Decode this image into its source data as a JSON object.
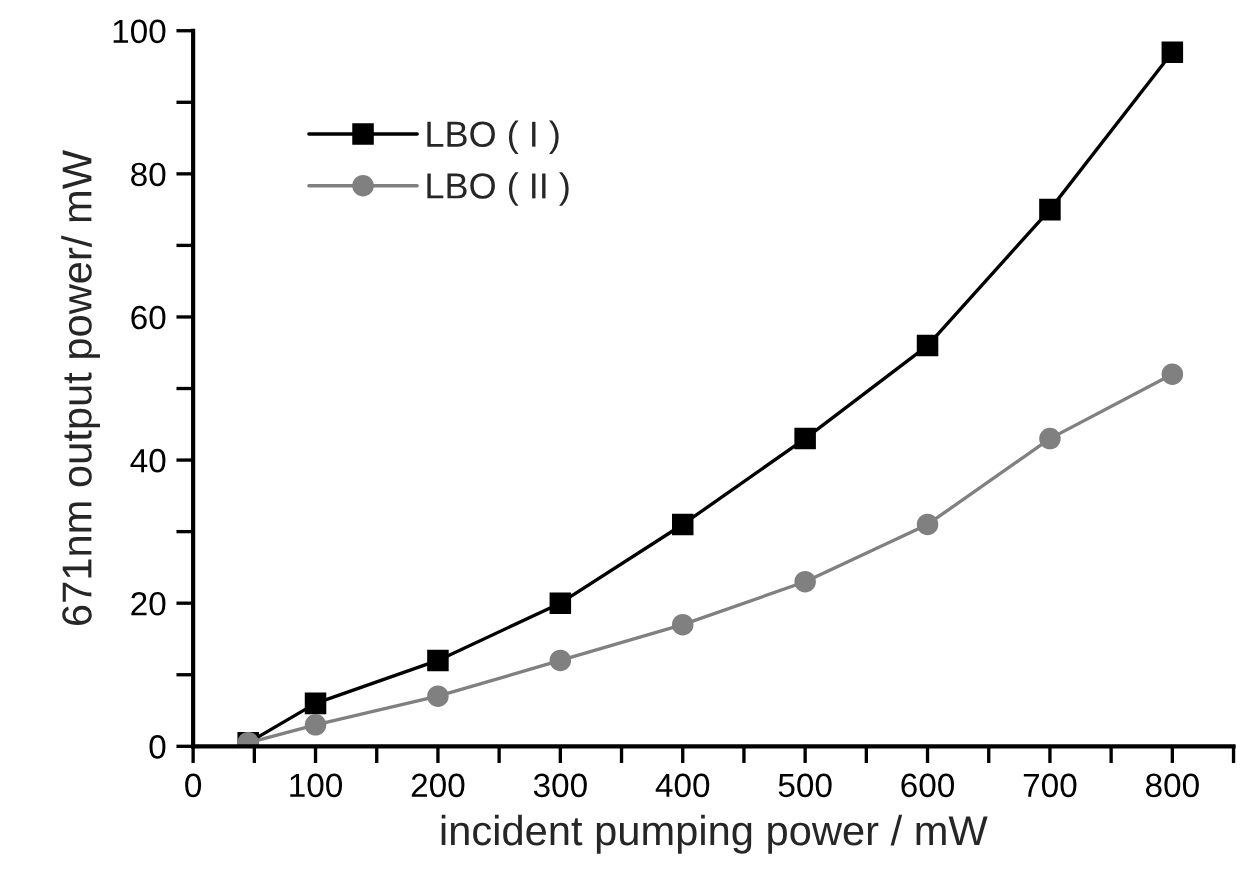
{
  "chart_data": {
    "type": "line",
    "xlabel": "incident pumping power / mW",
    "ylabel": "671nm output power/ mW",
    "x": [
      45,
      100,
      200,
      300,
      400,
      500,
      600,
      700,
      800
    ],
    "series": [
      {
        "name": "LBO ( I )",
        "color": "#000000",
        "marker": "square",
        "values": [
          0.5,
          6,
          12,
          20,
          31,
          43,
          56,
          75,
          97
        ]
      },
      {
        "name": "LBO ( II )",
        "color": "#808080",
        "marker": "circle",
        "values": [
          0.5,
          3,
          7,
          12,
          17,
          23,
          31,
          43,
          52
        ]
      }
    ],
    "xlim": [
      0,
      850
    ],
    "xticks": [
      0,
      {
        "value": 50,
        "label": null
      },
      100,
      {
        "value": 150,
        "label": null
      },
      200,
      {
        "value": 250,
        "label": null
      },
      300,
      {
        "value": 350,
        "label": null
      },
      400,
      {
        "value": 450,
        "label": null
      },
      500,
      {
        "value": 550,
        "label": null
      },
      600,
      {
        "value": 650,
        "label": null
      },
      700,
      {
        "value": 750,
        "label": null
      },
      800,
      {
        "value": 850,
        "label": null
      }
    ],
    "ylim": [
      0,
      100
    ],
    "yticks": [
      0,
      {
        "value": 10,
        "label": null
      },
      20,
      {
        "value": 30,
        "label": null
      },
      40,
      {
        "value": 50,
        "label": null
      },
      60,
      {
        "value": 70,
        "label": null
      },
      80,
      {
        "value": 90,
        "label": null
      },
      100
    ],
    "legend": "top left",
    "grid": false,
    "line_style": "solid"
  }
}
